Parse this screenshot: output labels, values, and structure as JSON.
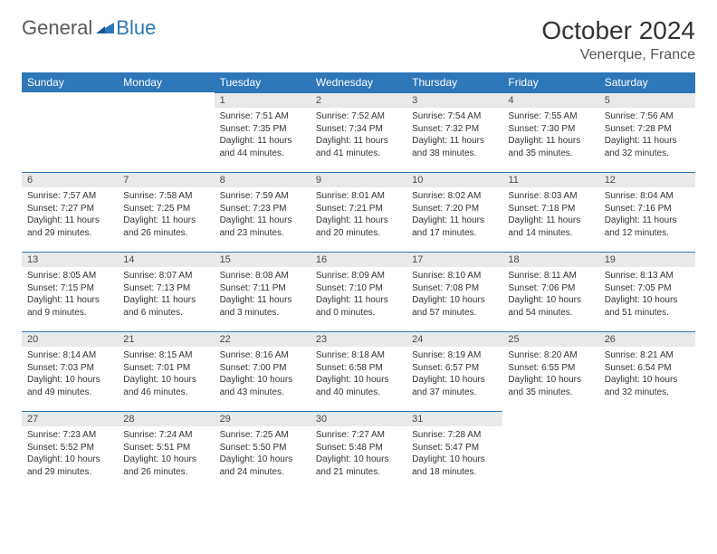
{
  "brand": {
    "part1": "General",
    "part2": "Blue"
  },
  "title": "October 2024",
  "location": "Venerque, France",
  "colors": {
    "header_bg": "#2e77b8",
    "header_text": "#ffffff",
    "daynum_bg": "#e7e9eb",
    "daynum_text": "#4a4a4a",
    "row_border": "#2e77b8",
    "body_text": "#333333",
    "logo_gray": "#5a5a5a",
    "logo_blue": "#2e77b8"
  },
  "weekdays": [
    "Sunday",
    "Monday",
    "Tuesday",
    "Wednesday",
    "Thursday",
    "Friday",
    "Saturday"
  ],
  "weeks": [
    [
      null,
      null,
      {
        "n": "1",
        "sr": "Sunrise: 7:51 AM",
        "ss": "Sunset: 7:35 PM",
        "dl": "Daylight: 11 hours and 44 minutes."
      },
      {
        "n": "2",
        "sr": "Sunrise: 7:52 AM",
        "ss": "Sunset: 7:34 PM",
        "dl": "Daylight: 11 hours and 41 minutes."
      },
      {
        "n": "3",
        "sr": "Sunrise: 7:54 AM",
        "ss": "Sunset: 7:32 PM",
        "dl": "Daylight: 11 hours and 38 minutes."
      },
      {
        "n": "4",
        "sr": "Sunrise: 7:55 AM",
        "ss": "Sunset: 7:30 PM",
        "dl": "Daylight: 11 hours and 35 minutes."
      },
      {
        "n": "5",
        "sr": "Sunrise: 7:56 AM",
        "ss": "Sunset: 7:28 PM",
        "dl": "Daylight: 11 hours and 32 minutes."
      }
    ],
    [
      {
        "n": "6",
        "sr": "Sunrise: 7:57 AM",
        "ss": "Sunset: 7:27 PM",
        "dl": "Daylight: 11 hours and 29 minutes."
      },
      {
        "n": "7",
        "sr": "Sunrise: 7:58 AM",
        "ss": "Sunset: 7:25 PM",
        "dl": "Daylight: 11 hours and 26 minutes."
      },
      {
        "n": "8",
        "sr": "Sunrise: 7:59 AM",
        "ss": "Sunset: 7:23 PM",
        "dl": "Daylight: 11 hours and 23 minutes."
      },
      {
        "n": "9",
        "sr": "Sunrise: 8:01 AM",
        "ss": "Sunset: 7:21 PM",
        "dl": "Daylight: 11 hours and 20 minutes."
      },
      {
        "n": "10",
        "sr": "Sunrise: 8:02 AM",
        "ss": "Sunset: 7:20 PM",
        "dl": "Daylight: 11 hours and 17 minutes."
      },
      {
        "n": "11",
        "sr": "Sunrise: 8:03 AM",
        "ss": "Sunset: 7:18 PM",
        "dl": "Daylight: 11 hours and 14 minutes."
      },
      {
        "n": "12",
        "sr": "Sunrise: 8:04 AM",
        "ss": "Sunset: 7:16 PM",
        "dl": "Daylight: 11 hours and 12 minutes."
      }
    ],
    [
      {
        "n": "13",
        "sr": "Sunrise: 8:05 AM",
        "ss": "Sunset: 7:15 PM",
        "dl": "Daylight: 11 hours and 9 minutes."
      },
      {
        "n": "14",
        "sr": "Sunrise: 8:07 AM",
        "ss": "Sunset: 7:13 PM",
        "dl": "Daylight: 11 hours and 6 minutes."
      },
      {
        "n": "15",
        "sr": "Sunrise: 8:08 AM",
        "ss": "Sunset: 7:11 PM",
        "dl": "Daylight: 11 hours and 3 minutes."
      },
      {
        "n": "16",
        "sr": "Sunrise: 8:09 AM",
        "ss": "Sunset: 7:10 PM",
        "dl": "Daylight: 11 hours and 0 minutes."
      },
      {
        "n": "17",
        "sr": "Sunrise: 8:10 AM",
        "ss": "Sunset: 7:08 PM",
        "dl": "Daylight: 10 hours and 57 minutes."
      },
      {
        "n": "18",
        "sr": "Sunrise: 8:11 AM",
        "ss": "Sunset: 7:06 PM",
        "dl": "Daylight: 10 hours and 54 minutes."
      },
      {
        "n": "19",
        "sr": "Sunrise: 8:13 AM",
        "ss": "Sunset: 7:05 PM",
        "dl": "Daylight: 10 hours and 51 minutes."
      }
    ],
    [
      {
        "n": "20",
        "sr": "Sunrise: 8:14 AM",
        "ss": "Sunset: 7:03 PM",
        "dl": "Daylight: 10 hours and 49 minutes."
      },
      {
        "n": "21",
        "sr": "Sunrise: 8:15 AM",
        "ss": "Sunset: 7:01 PM",
        "dl": "Daylight: 10 hours and 46 minutes."
      },
      {
        "n": "22",
        "sr": "Sunrise: 8:16 AM",
        "ss": "Sunset: 7:00 PM",
        "dl": "Daylight: 10 hours and 43 minutes."
      },
      {
        "n": "23",
        "sr": "Sunrise: 8:18 AM",
        "ss": "Sunset: 6:58 PM",
        "dl": "Daylight: 10 hours and 40 minutes."
      },
      {
        "n": "24",
        "sr": "Sunrise: 8:19 AM",
        "ss": "Sunset: 6:57 PM",
        "dl": "Daylight: 10 hours and 37 minutes."
      },
      {
        "n": "25",
        "sr": "Sunrise: 8:20 AM",
        "ss": "Sunset: 6:55 PM",
        "dl": "Daylight: 10 hours and 35 minutes."
      },
      {
        "n": "26",
        "sr": "Sunrise: 8:21 AM",
        "ss": "Sunset: 6:54 PM",
        "dl": "Daylight: 10 hours and 32 minutes."
      }
    ],
    [
      {
        "n": "27",
        "sr": "Sunrise: 7:23 AM",
        "ss": "Sunset: 5:52 PM",
        "dl": "Daylight: 10 hours and 29 minutes."
      },
      {
        "n": "28",
        "sr": "Sunrise: 7:24 AM",
        "ss": "Sunset: 5:51 PM",
        "dl": "Daylight: 10 hours and 26 minutes."
      },
      {
        "n": "29",
        "sr": "Sunrise: 7:25 AM",
        "ss": "Sunset: 5:50 PM",
        "dl": "Daylight: 10 hours and 24 minutes."
      },
      {
        "n": "30",
        "sr": "Sunrise: 7:27 AM",
        "ss": "Sunset: 5:48 PM",
        "dl": "Daylight: 10 hours and 21 minutes."
      },
      {
        "n": "31",
        "sr": "Sunrise: 7:28 AM",
        "ss": "Sunset: 5:47 PM",
        "dl": "Daylight: 10 hours and 18 minutes."
      },
      null,
      null
    ]
  ]
}
